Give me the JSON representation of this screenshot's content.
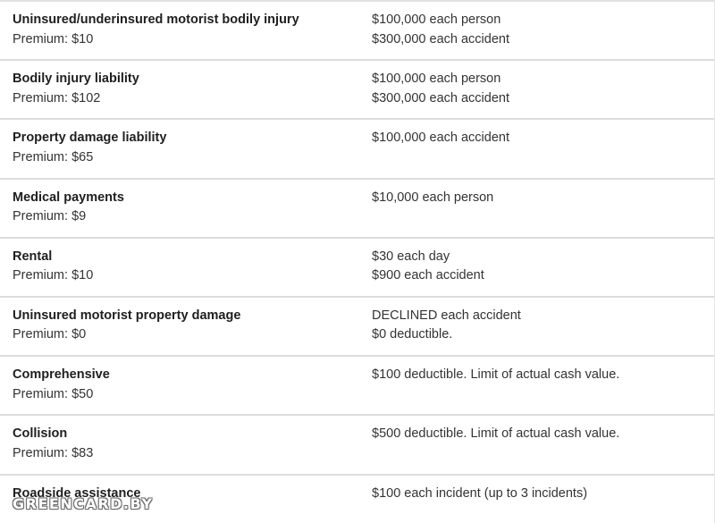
{
  "coverages": [
    {
      "name": "Uninsured/underinsured motorist bodily injury",
      "premium": "Premium: $10",
      "limit_line1": "$100,000 each person",
      "limit_line2": "$300,000 each accident"
    },
    {
      "name": "Bodily injury liability",
      "premium": "Premium: $102",
      "limit_line1": "$100,000 each person",
      "limit_line2": "$300,000 each accident"
    },
    {
      "name": "Property damage liability",
      "premium": "Premium: $65",
      "limit_line1": "$100,000 each accident",
      "limit_line2": ""
    },
    {
      "name": "Medical payments",
      "premium": "Premium: $9",
      "limit_line1": "$10,000 each person",
      "limit_line2": ""
    },
    {
      "name": "Rental",
      "premium": "Premium: $10",
      "limit_line1": "$30 each day",
      "limit_line2": "$900 each accident"
    },
    {
      "name": "Uninsured motorist property damage",
      "premium": "Premium: $0",
      "limit_line1": "DECLINED each accident",
      "limit_line2": "$0 deductible."
    },
    {
      "name": "Comprehensive",
      "premium": "Premium: $50",
      "limit_line1": "$100 deductible. Limit of actual cash value.",
      "limit_line2": ""
    },
    {
      "name": "Collision",
      "premium": "Premium: $83",
      "limit_line1": "$500 deductible. Limit of actual cash value.",
      "limit_line2": ""
    },
    {
      "name": "Roadside assistance",
      "premium": "",
      "limit_line1": "$100 each incident (up to 3 incidents)",
      "limit_line2": ""
    }
  ],
  "watermark": {
    "text": "GREENCARD.BY"
  }
}
